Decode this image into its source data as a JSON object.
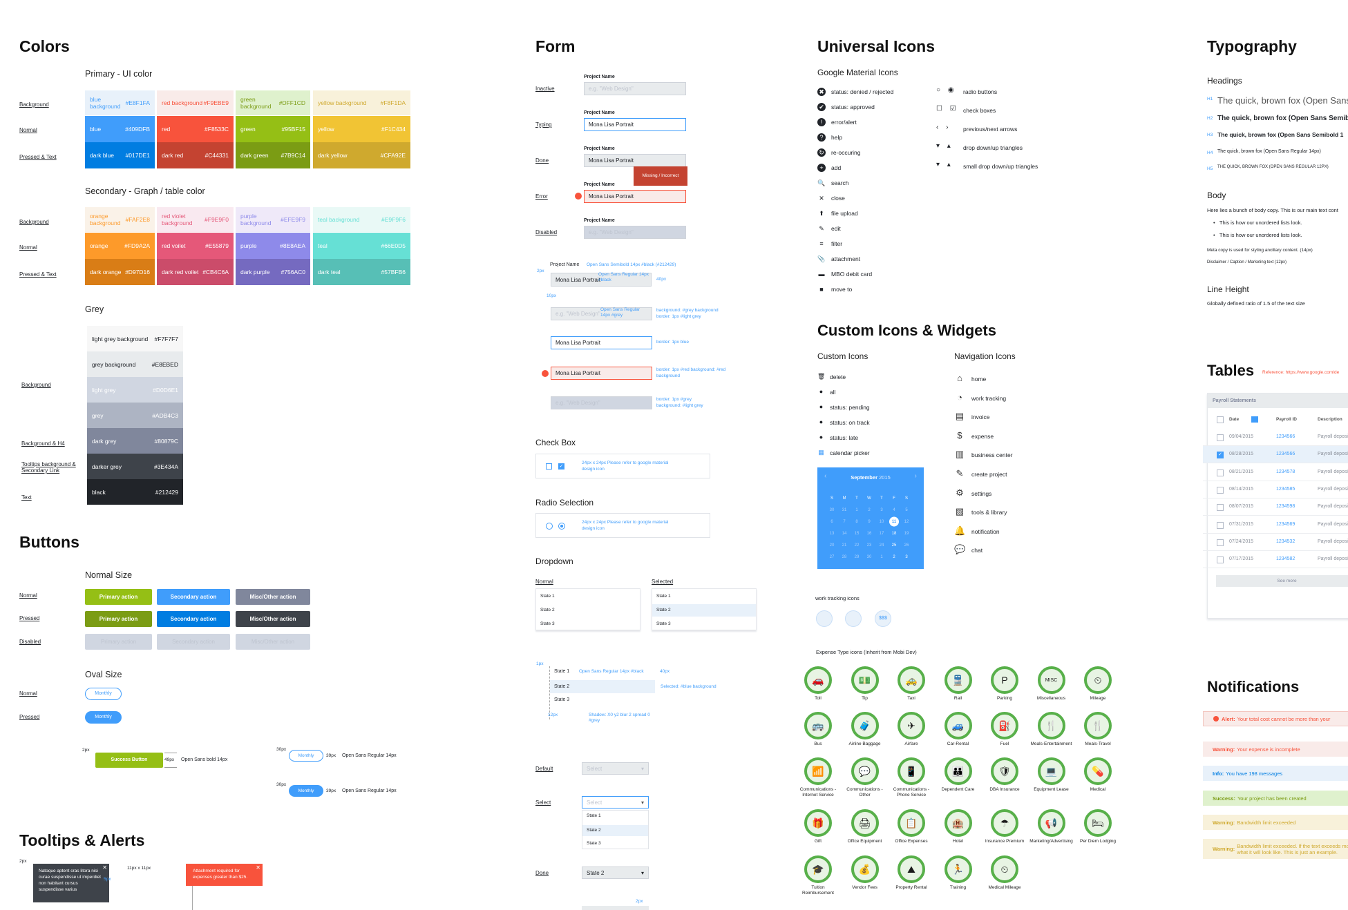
{
  "colors": {
    "title": "Colors",
    "primary_title": "Primary - UI color",
    "secondary_title": "Secondary - Graph / table color",
    "grey_title": "Grey",
    "row_labels": {
      "background": "Background",
      "normal": "Normal",
      "pressed": "Pressed & Text",
      "bg_h4": "Background & H4",
      "tooltips": "Tooltips background & Secondary Link",
      "text": "Text"
    },
    "primary": [
      {
        "name": "blue background",
        "hex": "#E8F1FA",
        "bg": "#E8F1FA",
        "fg": "#409DFB"
      },
      {
        "name": "red background",
        "hex": "#F9EBE9",
        "bg": "#F9EBE9",
        "fg": "#F8533C"
      },
      {
        "name": "green background",
        "hex": "#DFF1CD",
        "bg": "#DFF1CD",
        "fg": "#7B9C14"
      },
      {
        "name": "yellow background",
        "hex": "#F8F1DA",
        "bg": "#F8F1DA",
        "fg": "#CFA92E"
      },
      {
        "name": "blue",
        "hex": "#409DFB",
        "bg": "#409DFB",
        "fg": "#fff"
      },
      {
        "name": "red",
        "hex": "#F8533C",
        "bg": "#F8533C",
        "fg": "#fff"
      },
      {
        "name": "green",
        "hex": "#95BF15",
        "bg": "#95BF15",
        "fg": "#fff"
      },
      {
        "name": "yellow",
        "hex": "#F1C434",
        "bg": "#F1C434",
        "fg": "#fff"
      },
      {
        "name": "dark blue",
        "hex": "#017DE1",
        "bg": "#017DE1",
        "fg": "#fff"
      },
      {
        "name": "dark red",
        "hex": "#C44331",
        "bg": "#C44331",
        "fg": "#fff"
      },
      {
        "name": "dark green",
        "hex": "#7B9C14",
        "bg": "#7B9C14",
        "fg": "#fff"
      },
      {
        "name": "dark yellow",
        "hex": "#CFA92E",
        "bg": "#CFA92E",
        "fg": "#fff"
      }
    ],
    "secondary": [
      {
        "name": "orange background",
        "hex": "#FAF2E8",
        "bg": "#FAF2E8",
        "fg": "#FD9A2A"
      },
      {
        "name": "red violet background",
        "hex": "#F9E9F0",
        "bg": "#F9E9F0",
        "fg": "#E55879"
      },
      {
        "name": "purple background",
        "hex": "#EFE9F9",
        "bg": "#EFE9F9",
        "fg": "#8E8AEA"
      },
      {
        "name": "teal background",
        "hex": "#E9F9F6",
        "bg": "#E9F9F6",
        "fg": "#66E0D5"
      },
      {
        "name": "orange",
        "hex": "#FD9A2A",
        "bg": "#FD9A2A",
        "fg": "#fff"
      },
      {
        "name": "red voilet",
        "hex": "#E55879",
        "bg": "#E55879",
        "fg": "#fff"
      },
      {
        "name": "purple",
        "hex": "#8E8AEA",
        "bg": "#8E8AEA",
        "fg": "#fff"
      },
      {
        "name": "teal",
        "hex": "#66E0D5",
        "bg": "#66E0D5",
        "fg": "#fff"
      },
      {
        "name": "dark orange",
        "hex": "#D97D16",
        "bg": "#D97D16",
        "fg": "#fff"
      },
      {
        "name": "dark red voilet",
        "hex": "#CB4C6A",
        "bg": "#CB4C6A",
        "fg": "#fff"
      },
      {
        "name": "dark purple",
        "hex": "#756AC0",
        "bg": "#756AC0",
        "fg": "#fff"
      },
      {
        "name": "dark teal",
        "hex": "#57BFB6",
        "bg": "#57BFB6",
        "fg": "#fff"
      }
    ],
    "grey": [
      {
        "name": "light grey background",
        "hex": "#F7F7F7",
        "bg": "#F7F7F7",
        "fg": "#212429"
      },
      {
        "name": "grey background",
        "hex": "#E8EBED",
        "bg": "#E8EBED",
        "fg": "#212429"
      },
      {
        "name": "light grey",
        "hex": "#D0D6E1",
        "bg": "#D0D6E1",
        "fg": "#fff"
      },
      {
        "name": "grey",
        "hex": "#ADB4C3",
        "bg": "#ADB4C3",
        "fg": "#fff"
      },
      {
        "name": "dark grey",
        "hex": "#80879C",
        "bg": "#80879C",
        "fg": "#fff"
      },
      {
        "name": "darker grey",
        "hex": "#3E434A",
        "bg": "#3E434A",
        "fg": "#fff"
      },
      {
        "name": "black",
        "hex": "#212429",
        "bg": "#212429",
        "fg": "#fff"
      }
    ]
  },
  "buttons": {
    "title": "Buttons",
    "normal_size": "Normal Size",
    "oval_size": "Oval Size",
    "labels": {
      "normal": "Normal",
      "pressed": "Pressed",
      "disabled": "Disabled"
    },
    "primary": "Primary action",
    "secondary": "Secondary action",
    "misc": "Misc/Other action",
    "monthly": "Monthly",
    "success": "Success Button",
    "dim_2px": "2px",
    "dim_49px": "49px",
    "spec_bold": "Open Sans bold 14px",
    "dim_30px": "30px",
    "dim_39px": "39px",
    "spec_reg": "Open Sans Regular 14px"
  },
  "tooltips": {
    "title": "Tooltips & Alerts",
    "dim_2px": "2px",
    "dim_11": "11px x 11px",
    "dim_5px": "5px",
    "dark_text": "Natoque aptent cras litora nisi curae suspendisse ut imperdiet non habitant cursus suspendisse varius",
    "red_text": "Attachment required for expenses greater than $25."
  },
  "form": {
    "title": "Form",
    "states": [
      {
        "label": "Inactive",
        "field_label": "Project Name",
        "value": "e.g. \"Web Design\""
      },
      {
        "label": "Typing",
        "field_label": "Project Name",
        "value": "Mona Lisa Portrait"
      },
      {
        "label": "Done",
        "field_label": "Project Name",
        "value": "Mona Lisa Portrait"
      },
      {
        "label": "Error",
        "field_label": "Project Name",
        "value": "Mona Lisa Portrait"
      },
      {
        "label": "Disabled",
        "field_label": "Project Name",
        "value": "e.g. \"Web Design\""
      }
    ],
    "error_tip": "Missing / Incorrect",
    "spec": {
      "label": "Project Name",
      "label_spec": "Open Sans Semibold 14px #black (#212429)",
      "px2": "2px",
      "val": "Mona Lisa Portrait",
      "val_spec": "Open Sans Regular 14px #black",
      "px40": "40px",
      "px10": "10px",
      "ph": "e.g. \"Web Design\"",
      "ph_spec": "Open Sans Regular 14px #grey",
      "ph_note": "background: #grey background border: 1px #light grey",
      "blue_val": "Mona Lisa Portrait",
      "blue_note": "border: 1px blue",
      "red_val": "Mona Lisa Portrait",
      "red_note": "border: 1px #red background: #red background",
      "dis_ph": "e.g. \"Web Design\"",
      "dis_note": "border: 1px #grey background: #light grey"
    },
    "checkbox_title": "Check Box",
    "checkbox_note": "24px x 24px Please refer to google material design icon",
    "radio_title": "Radio Selection",
    "radio_note": "24px x 24px Please refer to google material design icon",
    "dropdown_title": "Dropdown",
    "dd_normal": "Normal",
    "dd_selected": "Selected",
    "dd_states": [
      "State 1",
      "State 2",
      "State 3"
    ],
    "dd_spec": {
      "px1": "1px",
      "s1_spec": "Open Sans Regular 14px #black",
      "px40": "40px",
      "sel": "Selected: #blue background",
      "px12": "12px",
      "shadow": "Shadow: X0 y2 blur 2 spread 0 #grey"
    },
    "default": "Default",
    "select": "Select",
    "done": "Done",
    "select_ph": "Select",
    "done_val": "State 2",
    "px_bottom": "2px"
  },
  "icons": {
    "title": "Universal Icons",
    "google_title": "Google Material Icons",
    "list": [
      "status: denied / rejected",
      "status: approved",
      "error/alert",
      "help",
      "re-occuring",
      "add",
      "search",
      "close",
      "file upload",
      "edit",
      "filter",
      "attachment",
      "MBO debit card",
      "move to"
    ],
    "list2": [
      "radio buttons",
      "check boxes",
      "previous/next arrows",
      "drop down/up triangles",
      "small drop down/up triangles"
    ]
  },
  "custom": {
    "title": "Custom Icons & Widgets",
    "custom_title": "Custom Icons",
    "nav_title": "Navigation Icons",
    "custom_list": [
      "delete",
      "all",
      "status: pending",
      "status: on track",
      "status: late",
      "calendar picker"
    ],
    "nav_list": [
      "home",
      "work tracking",
      "invoice",
      "expense",
      "business center",
      "create project",
      "settings",
      "tools & library",
      "notification",
      "chat"
    ],
    "calendar": {
      "month": "September",
      "year": "2015",
      "days": [
        "S",
        "M",
        "T",
        "W",
        "T",
        "F",
        "S"
      ],
      "weeks": [
        [
          "30",
          "31",
          "1",
          "2",
          "3",
          "4",
          "5"
        ],
        [
          "6",
          "7",
          "8",
          "9",
          "10",
          "11",
          "12"
        ],
        [
          "13",
          "14",
          "15",
          "16",
          "17",
          "18",
          "19"
        ],
        [
          "20",
          "21",
          "22",
          "23",
          "24",
          "25",
          "26"
        ],
        [
          "27",
          "28",
          "29",
          "30",
          "1",
          "2",
          "3"
        ]
      ]
    },
    "work_tracking": "work tracking icons",
    "expense_title": "Expense Type icons (Inherit from Mobi Dev)",
    "expense": [
      {
        "label": "Toll",
        "icon": "🚗"
      },
      {
        "label": "Tip",
        "icon": "💵"
      },
      {
        "label": "Taxi",
        "icon": "🚕"
      },
      {
        "label": "Rail",
        "icon": "🚆"
      },
      {
        "label": "Parking",
        "icon": "P"
      },
      {
        "label": "Miscellaneous",
        "icon": "MISC"
      },
      {
        "label": "Mileage",
        "icon": "⏲"
      },
      {
        "label": "Bus",
        "icon": "🚌"
      },
      {
        "label": "Airline Baggage",
        "icon": "🧳"
      },
      {
        "label": "Airfare",
        "icon": "✈"
      },
      {
        "label": "Car-Rental",
        "icon": "🚙"
      },
      {
        "label": "Fuel",
        "icon": "⛽"
      },
      {
        "label": "Meals-Entertainment",
        "icon": "🍴"
      },
      {
        "label": "Meals-Travel",
        "icon": "🍴"
      },
      {
        "label": "Communications - Internet Service",
        "icon": "📶"
      },
      {
        "label": "Communications - Other",
        "icon": "💬"
      },
      {
        "label": "Communications - Phone Service",
        "icon": "📱"
      },
      {
        "label": "Dependent Care",
        "icon": "👪"
      },
      {
        "label": "DBA Insurance",
        "icon": "🛡"
      },
      {
        "label": "Equipment Lease",
        "icon": "💻"
      },
      {
        "label": "Medical",
        "icon": "💊"
      },
      {
        "label": "Gift",
        "icon": "🎁"
      },
      {
        "label": "Office Equipment",
        "icon": "🖨"
      },
      {
        "label": "Office Expenses",
        "icon": "📋"
      },
      {
        "label": "Hotel",
        "icon": "🏨"
      },
      {
        "label": "Insurance Premium",
        "icon": "☂"
      },
      {
        "label": "Marketing/Advertising",
        "icon": "📢"
      },
      {
        "label": "Per Diem Lodging",
        "icon": "🛏"
      },
      {
        "label": "Tuition Reimbursement",
        "icon": "🎓"
      },
      {
        "label": "Vendor Fees",
        "icon": "💰"
      },
      {
        "label": "Property Rental",
        "icon": "⛰"
      },
      {
        "label": "Training",
        "icon": "🏃"
      },
      {
        "label": "Medical Mileage",
        "icon": "⏲"
      }
    ]
  },
  "typography": {
    "title": "Typography",
    "headings": "Headings",
    "h": [
      {
        "tag": "H1",
        "text": "The quick, brown fox (Open Sans"
      },
      {
        "tag": "H2",
        "text": "The quick, brown fox (Open Sans Semibo"
      },
      {
        "tag": "H3",
        "text": "The quick, brown fox (Open Sans Semibold 1"
      },
      {
        "tag": "H4",
        "text": "The quick, brown fox (Open Sans Regular 14px)"
      },
      {
        "tag": "H5",
        "text": "THE QUICK, BROWN FOX (OPEN SANS REGULAR 12PX)"
      }
    ],
    "body": "Body",
    "body_text": "Here lies a bunch of body copy. This is our main text cont",
    "bullets": [
      "This is how our unordered lists look.",
      "This is how our unordered lists look."
    ],
    "meta": "Meta copy is used for styling ancillary content. (14px)",
    "disclaimer": "Disclaimer / Caption / Marketing text (12px)",
    "line_height": "Line Height",
    "lh_text": "Globally defined ratio of 1.5 of the text size"
  },
  "tables": {
    "title": "Tables",
    "reference": "Reference: https://www.google.com/de",
    "header": "Payroll Statements",
    "cols": [
      "Date",
      "Payroll ID",
      "Description"
    ],
    "rows": [
      {
        "date": "09/04/2015",
        "id": "1234566",
        "desc": "Payroll deposit"
      },
      {
        "date": "08/28/2015",
        "id": "1234566",
        "desc": "Payroll deposit"
      },
      {
        "date": "08/21/2015",
        "id": "1234578",
        "desc": "Payroll deposit"
      },
      {
        "date": "08/14/2015",
        "id": "1234585",
        "desc": "Payroll deposit"
      },
      {
        "date": "08/07/2015",
        "id": "1234598",
        "desc": "Payroll deposit"
      },
      {
        "date": "07/31/2015",
        "id": "1234569",
        "desc": "Payroll deposit"
      },
      {
        "date": "07/24/2015",
        "id": "1234532",
        "desc": "Payroll deposit"
      },
      {
        "date": "07/17/2015",
        "id": "1234582",
        "desc": "Payroll deposit"
      }
    ],
    "see_more": "See more"
  },
  "notifications": {
    "title": "Notifications",
    "items": [
      {
        "kind": "Alert:",
        "text": "Your total cost cannot be more than your",
        "bg": "#F9EBE9",
        "fg": "#F8533C"
      },
      {
        "kind": "Warning:",
        "text": "Your expense is incomplete",
        "bg": "#F9EBE9",
        "fg": "#F8533C"
      },
      {
        "kind": "Info:",
        "text": "You have 198 messages",
        "bg": "#E8F1FA",
        "fg": "#017DE1"
      },
      {
        "kind": "Success:",
        "text": "Your project has been created",
        "bg": "#DFF1CD",
        "fg": "#7B9C14"
      },
      {
        "kind": "Warning:",
        "text": "Bandwidth limit exceeded",
        "bg": "#F8F1DA",
        "fg": "#CFA92E"
      },
      {
        "kind": "Warning:",
        "text": "Bandwidth limit exceeded. If the text exceeds mo what it will look like. This is just an example.",
        "bg": "#F8F1DA",
        "fg": "#CFA92E"
      }
    ]
  }
}
